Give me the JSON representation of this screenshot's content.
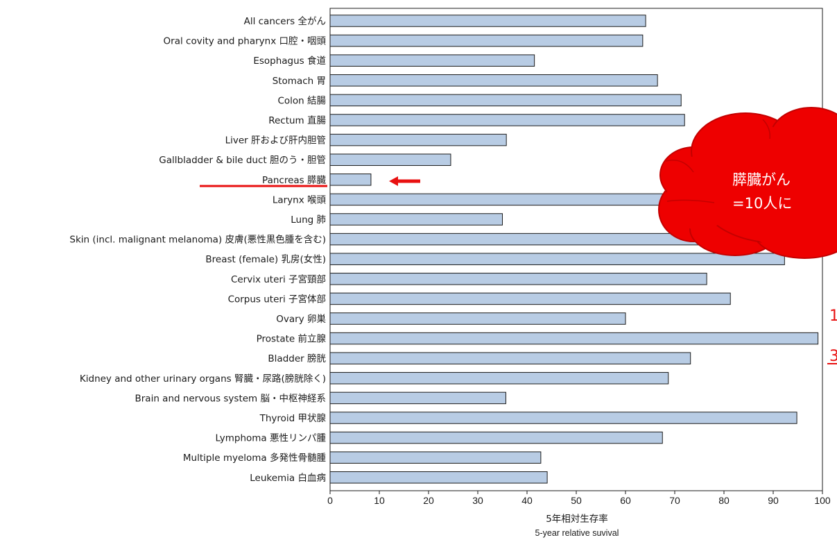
{
  "chart_data": {
    "type": "bar",
    "orientation": "horizontal",
    "categories": [
      "All cancers 全がん",
      "Oral covity and pharynx 口腔・咽頭",
      "Esophagus 食道",
      "Stomach 胃",
      "Colon 結腸",
      "Rectum 直腸",
      "Liver 肝および肝内胆管",
      "Gallbladder & bile duct 胆のう・胆管",
      "Pancreas 膵臓",
      "Larynx 喉頭",
      "Lung 肺",
      "Skin (incl. malignant melanoma) 皮膚(悪性黒色腫を含む)",
      "Breast (female) 乳房(女性)",
      "Cervix uteri 子宮頸部",
      "Corpus uteri 子宮体部",
      "Ovary 卵巣",
      "Prostate 前立腺",
      "Bladder 膀胱",
      "Kidney and other urinary organs 腎臓・尿路(膀胱除く)",
      "Brain and nervous system 脳・中枢神経系",
      "Thyroid 甲状腺",
      "Lymphoma 悪性リンパ腫",
      "Multiple myeloma 多発性骨髄腫",
      "Leukemia 白血病"
    ],
    "values": [
      64.1,
      63.5,
      41.5,
      66.5,
      71.3,
      72,
      35.8,
      24.5,
      8.3,
      79,
      35,
      92.5,
      92.3,
      76.5,
      81.3,
      60,
      99.1,
      73.2,
      68.7,
      35.7,
      94.8,
      67.5,
      42.8,
      44.1
    ],
    "xlabel": "5年相対生存率",
    "xlabel_en": "5-year relative suvival",
    "xlim": [
      0,
      100
    ],
    "xticks": [
      "0",
      "10",
      "20",
      "30",
      "40",
      "50",
      "60",
      "70",
      "80",
      "90",
      "100"
    ],
    "bar_color": "#b8cce4",
    "highlight_category": "Pancreas 膵臓",
    "highlight_color": "#e81010"
  },
  "callout": {
    "line1": "膵臓がん",
    "line2": "=10人に",
    "fill_color": "#ee0000"
  },
  "fragments": [
    "1",
    "3"
  ]
}
